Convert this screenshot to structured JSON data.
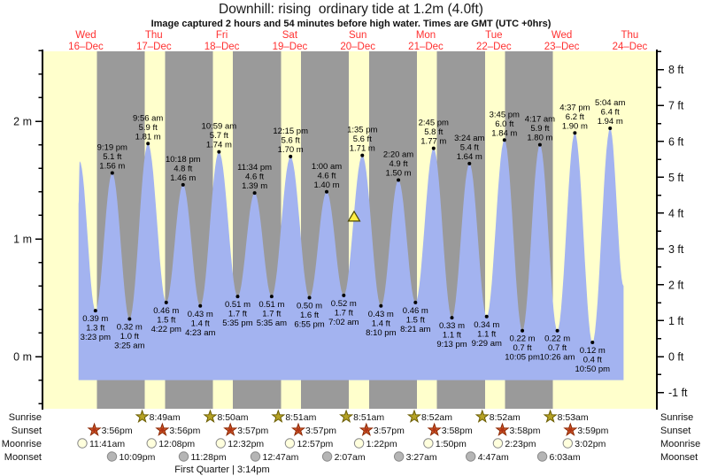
{
  "title": "Downhill: rising  ordinary tide at 1.2m (4.0ft)",
  "subtitle": "Image captured 2 hours and 54 minutes before high water. Times are GMT (UTC +0hrs)",
  "colors": {
    "day_band": "#ffffcc",
    "night_band": "#9a9a9a",
    "tide_fill": "#a3b3f0",
    "day_label": "#ff3030",
    "axis": "#000000",
    "sunrise_star": "#b5a225",
    "sunrise_star_edge": "#6a5c00",
    "sunset_star": "#d15a2e",
    "sunset_star_edge": "#8a2500",
    "sunset_star_core": "#b03515",
    "moonrise_circle": "#ffffdd",
    "moonset_circle": "#b5b5b5",
    "moon_edge": "#8a8a8a",
    "now_marker": "#ffee44",
    "now_marker_edge": "#4d4800"
  },
  "chart_data": {
    "type": "area",
    "x_days": [
      {
        "name": "Wed",
        "date": "16–Dec"
      },
      {
        "name": "Thu",
        "date": "17–Dec"
      },
      {
        "name": "Fri",
        "date": "18–Dec"
      },
      {
        "name": "Sat",
        "date": "19–Dec"
      },
      {
        "name": "Sun",
        "date": "20–Dec"
      },
      {
        "name": "Mon",
        "date": "21–Dec"
      },
      {
        "name": "Tue",
        "date": "22–Dec"
      },
      {
        "name": "Wed",
        "date": "23–Dec"
      },
      {
        "name": "Thu",
        "date": "24–Dec"
      }
    ],
    "y_axis_m": {
      "min": -0.45,
      "max": 2.6,
      "minor_step": 0.2,
      "labels": [
        {
          "v": 0,
          "label": "0 m"
        },
        {
          "v": 1,
          "label": "1 m"
        },
        {
          "v": 2,
          "label": "2 m"
        }
      ]
    },
    "y_axis_ft": {
      "min": -1,
      "max": 8.5,
      "minor_step": 0.5,
      "labels": [
        {
          "v": -1,
          "label": "-1 ft"
        },
        {
          "v": 0,
          "label": "0 ft"
        },
        {
          "v": 1,
          "label": "1 ft"
        },
        {
          "v": 2,
          "label": "2 ft"
        },
        {
          "v": 3,
          "label": "3 ft"
        },
        {
          "v": 4,
          "label": "4 ft"
        },
        {
          "v": 5,
          "label": "5 ft"
        },
        {
          "v": 6,
          "label": "6 ft"
        },
        {
          "v": 7,
          "label": "7 ft"
        },
        {
          "v": 8,
          "label": "8 ft"
        }
      ]
    },
    "fill_base_m": -0.2,
    "tides": [
      {
        "day": 0,
        "hour": 9.4,
        "m": 1.3,
        "type": "edge"
      },
      {
        "day": 0,
        "hour": 9.8,
        "m": 1.66,
        "type": "high"
      },
      {
        "day": 0,
        "time": "3:23 pm",
        "m_label": "0.39 m",
        "ft_label": "1.3 ft",
        "type": "low"
      },
      {
        "day": 0,
        "time": "9:19 pm",
        "m_label": "1.56 m",
        "ft_label": "5.1 ft",
        "type": "high"
      },
      {
        "day": 1,
        "time": "3:25 am",
        "m_label": "0.32 m",
        "ft_label": "1.0 ft",
        "type": "low"
      },
      {
        "day": 1,
        "time": "9:56 am",
        "m_label": "1.81 m",
        "ft_label": "5.9 ft",
        "type": "high"
      },
      {
        "day": 1,
        "time": "4:22 pm",
        "m_label": "0.46 m",
        "ft_label": "1.5 ft",
        "type": "low"
      },
      {
        "day": 1,
        "time": "10:18 pm",
        "m_label": "1.46 m",
        "ft_label": "4.8 ft",
        "type": "high"
      },
      {
        "day": 2,
        "time": "4:23 am",
        "m_label": "0.43 m",
        "ft_label": "1.4 ft",
        "type": "low"
      },
      {
        "day": 2,
        "time": "10:59 am",
        "m_label": "1.74 m",
        "ft_label": "5.7 ft",
        "type": "high"
      },
      {
        "day": 2,
        "time": "5:35 pm",
        "m_label": "0.51 m",
        "ft_label": "1.7 ft",
        "type": "low"
      },
      {
        "day": 2,
        "time": "11:34 pm",
        "m_label": "1.39 m",
        "ft_label": "4.6 ft",
        "type": "high"
      },
      {
        "day": 3,
        "time": "5:35 am",
        "m_label": "0.51 m",
        "ft_label": "1.7 ft",
        "type": "low"
      },
      {
        "day": 3,
        "time": "12:15 pm",
        "m_label": "1.70 m",
        "ft_label": "5.6 ft",
        "type": "high"
      },
      {
        "day": 3,
        "time": "6:55 pm",
        "m_label": "0.50 m",
        "ft_label": "1.6 ft",
        "type": "low"
      },
      {
        "day": 4,
        "time": "1:00 am",
        "m_label": "1.40 m",
        "ft_label": "4.6 ft",
        "type": "high"
      },
      {
        "day": 4,
        "time": "7:02 am",
        "m_label": "0.52 m",
        "ft_label": "1.7 ft",
        "type": "low"
      },
      {
        "day": 4,
        "time": "1:35 pm",
        "m_label": "1.71 m",
        "ft_label": "5.6 ft",
        "type": "high"
      },
      {
        "day": 4,
        "time": "8:10 pm",
        "m_label": "0.43 m",
        "ft_label": "1.4 ft",
        "type": "low"
      },
      {
        "day": 5,
        "time": "2:20 am",
        "m_label": "1.50 m",
        "ft_label": "4.9 ft",
        "type": "high"
      },
      {
        "day": 5,
        "time": "8:21 am",
        "m_label": "0.46 m",
        "ft_label": "1.5 ft",
        "type": "low"
      },
      {
        "day": 5,
        "time": "2:45 pm",
        "m_label": "1.77 m",
        "ft_label": "5.8 ft",
        "type": "high"
      },
      {
        "day": 5,
        "time": "9:13 pm",
        "m_label": "0.33 m",
        "ft_label": "1.1 ft",
        "type": "low"
      },
      {
        "day": 6,
        "time": "3:24 am",
        "m_label": "1.64 m",
        "ft_label": "5.4 ft",
        "type": "high"
      },
      {
        "day": 6,
        "time": "9:29 am",
        "m_label": "0.34 m",
        "ft_label": "1.1 ft",
        "type": "low"
      },
      {
        "day": 6,
        "time": "3:45 pm",
        "m_label": "1.84 m",
        "ft_label": "6.0 ft",
        "type": "high"
      },
      {
        "day": 6,
        "time": "10:05 pm",
        "m_label": "0.22 m",
        "ft_label": "0.7 ft",
        "type": "low"
      },
      {
        "day": 7,
        "time": "4:17 am",
        "m_label": "1.80 m",
        "ft_label": "5.9 ft",
        "type": "high"
      },
      {
        "day": 7,
        "time": "10:26 am",
        "m_label": "0.22 m",
        "ft_label": "0.7 ft",
        "type": "low"
      },
      {
        "day": 7,
        "time": "4:37 pm",
        "m_label": "1.90 m",
        "ft_label": "6.2 ft",
        "type": "high"
      },
      {
        "day": 7,
        "time": "10:50 pm",
        "m_label": "0.12 m",
        "ft_label": "0.4 ft",
        "type": "low"
      },
      {
        "day": 8,
        "time": "5:04 am",
        "m_label": "1.94 m",
        "ft_label": "6.4 ft",
        "type": "high"
      },
      {
        "day": 8,
        "hour": 9.8,
        "m": 0.6,
        "type": "edge"
      }
    ],
    "now_marker": {
      "day": 4,
      "time": "10:41 am",
      "m": 1.2
    },
    "sun_moon": {
      "sunrise": [
        {
          "day": 1,
          "time": "8:49am"
        },
        {
          "day": 2,
          "time": "8:50am"
        },
        {
          "day": 3,
          "time": "8:51am"
        },
        {
          "day": 4,
          "time": "8:51am"
        },
        {
          "day": 5,
          "time": "8:52am"
        },
        {
          "day": 6,
          "time": "8:52am"
        },
        {
          "day": 7,
          "time": "8:53am"
        }
      ],
      "sunset": [
        {
          "day": 0,
          "time": "3:56pm"
        },
        {
          "day": 1,
          "time": "3:56pm"
        },
        {
          "day": 2,
          "time": "3:57pm"
        },
        {
          "day": 3,
          "time": "3:57pm"
        },
        {
          "day": 4,
          "time": "3:57pm"
        },
        {
          "day": 5,
          "time": "3:58pm"
        },
        {
          "day": 6,
          "time": "3:58pm"
        },
        {
          "day": 7,
          "time": "3:59pm"
        }
      ],
      "moonrise": [
        {
          "day": 0,
          "time": "11:41am"
        },
        {
          "day": 1,
          "time": "12:08pm"
        },
        {
          "day": 2,
          "time": "12:32pm"
        },
        {
          "day": 3,
          "time": "12:57pm"
        },
        {
          "day": 4,
          "time": "1:22pm"
        },
        {
          "day": 5,
          "time": "1:50pm"
        },
        {
          "day": 6,
          "time": "2:23pm"
        },
        {
          "day": 7,
          "time": "3:02pm"
        }
      ],
      "moonset": [
        {
          "day": 0,
          "time": "10:09pm"
        },
        {
          "day": 1,
          "time": "11:28pm"
        },
        {
          "day": 3,
          "time": "12:47am"
        },
        {
          "day": 4,
          "time": "2:07am"
        },
        {
          "day": 5,
          "time": "3:27am"
        },
        {
          "day": 6,
          "time": "4:47am"
        },
        {
          "day": 7,
          "time": "6:03am"
        }
      ]
    }
  },
  "astro": {
    "row_labels": [
      "Sunrise",
      "Sunset",
      "Moonrise",
      "Moonset"
    ],
    "moon_phase_note": "First Quarter | 3:14pm"
  }
}
